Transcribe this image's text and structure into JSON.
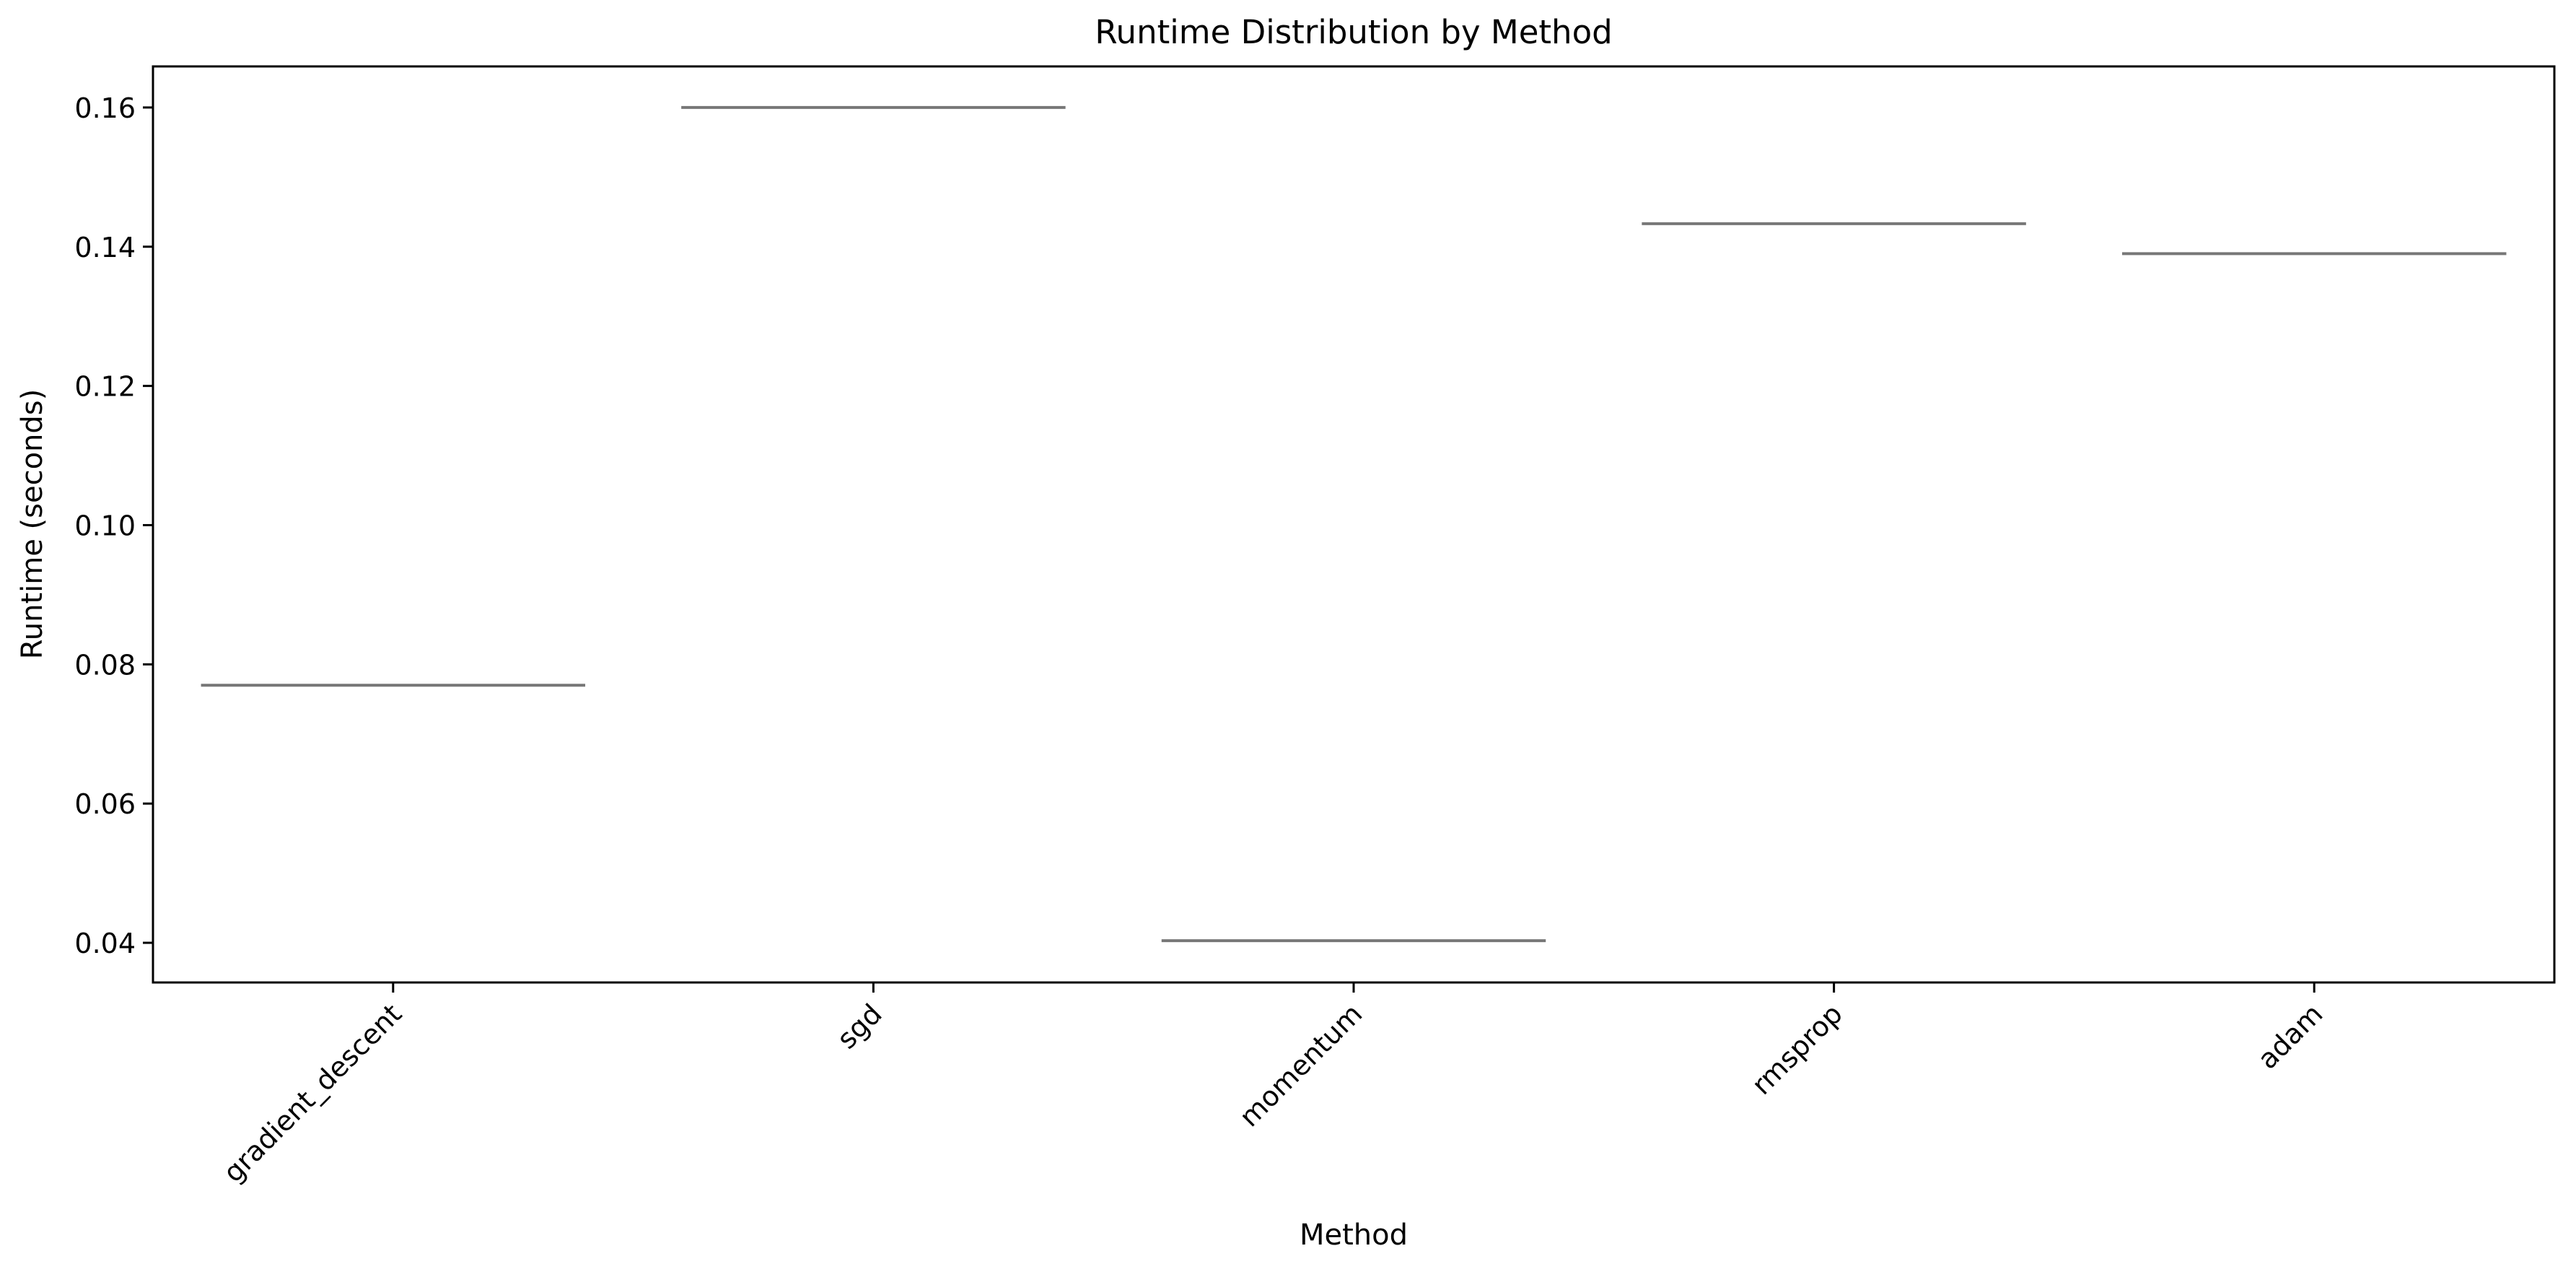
{
  "chart_data": {
    "type": "box",
    "title": "Runtime Distribution by Method",
    "xlabel": "Method",
    "ylabel": "Runtime (seconds)",
    "categories": [
      "gradient_descent",
      "sgd",
      "momentum",
      "rmsprop",
      "adam"
    ],
    "values": [
      0.077,
      0.16,
      0.0403,
      0.1433,
      0.139
    ],
    "ylim": [
      0.0343,
      0.1659
    ],
    "yticks": [
      0.04,
      0.06,
      0.08,
      0.1,
      0.12,
      0.14,
      0.16
    ],
    "ytick_labels": [
      "0.04",
      "0.06",
      "0.08",
      "0.10",
      "0.12",
      "0.14",
      "0.16"
    ],
    "grid": false,
    "legend": "none",
    "median_color": "#777777",
    "x_tick_rotation_deg": 45
  }
}
